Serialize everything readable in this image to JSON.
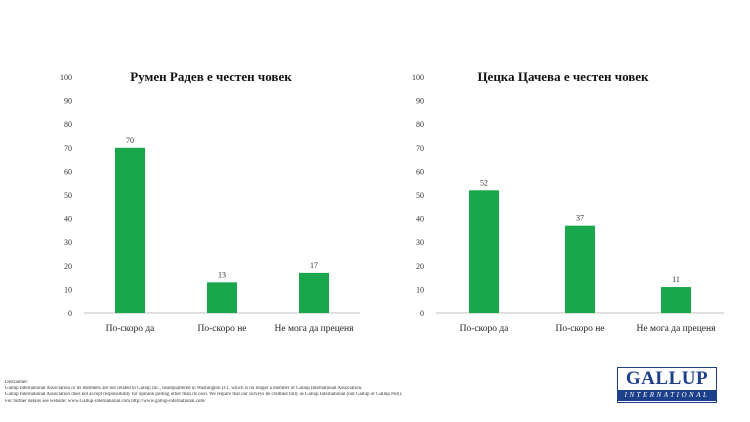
{
  "chart_data": [
    {
      "type": "bar",
      "title": "Румен Радев е честен човек",
      "categories": [
        "По-скоро да",
        "По-скоро не",
        "Не мога да преценя"
      ],
      "values": [
        70,
        13,
        17
      ],
      "ylim": [
        0,
        100
      ],
      "yticks": [
        "0",
        "10",
        "20",
        "30",
        "40",
        "50",
        "60",
        "70",
        "80",
        "90",
        "100"
      ],
      "grid": false,
      "bar_color": "#1aa64a",
      "data_labels": true
    },
    {
      "type": "bar",
      "title": "Цецка Цачева е честен човек",
      "categories": [
        "По-скоро да",
        "По-скоро не",
        "Не мога да преценя"
      ],
      "values": [
        52,
        37,
        11
      ],
      "ylim": [
        0,
        100
      ],
      "yticks": [
        "0",
        "10",
        "20",
        "30",
        "40",
        "50",
        "60",
        "70",
        "80",
        "90",
        "100"
      ],
      "grid": false,
      "bar_color": "#1aa64a",
      "data_labels": true
    }
  ],
  "disclaimer": [
    "Disclaimer:",
    "Gallup International Association or its members are not related to Gallup Inc., headquartered in Washington D.C which is no longer a member of Gallup International Association.",
    "Gallup International Association does not accept responsibility for opinion polling other than its own. We require that our surveys be credited fully as Gallup International (not Gallup or Gallup Poll).",
    "For further details see website: www.Gallup-international.com http://www.gallup-international.com/"
  ],
  "logo": {
    "main": "GALLUP",
    "sub": "INTERNATIONAL",
    "color": "#1d3f8a"
  }
}
